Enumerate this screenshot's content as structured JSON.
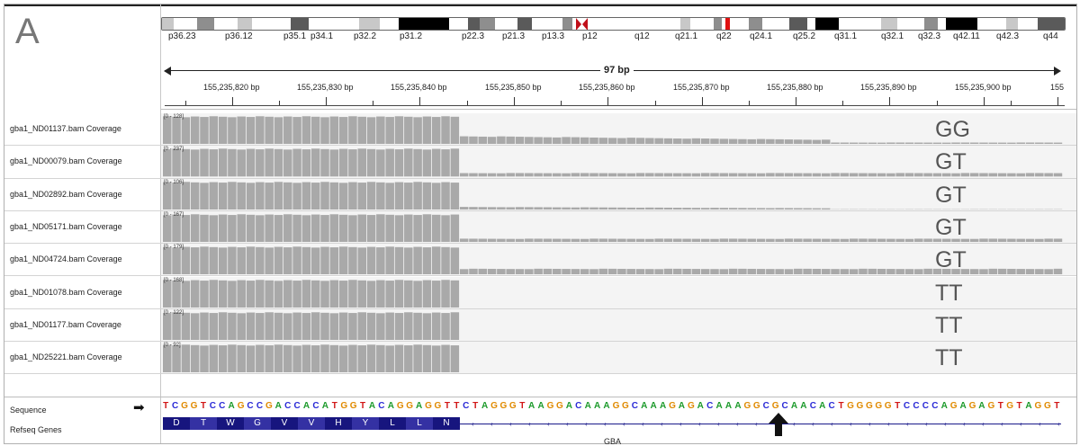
{
  "panel_label": "A",
  "ideogram": {
    "bands": [
      {
        "label": "p36.23",
        "shade": "gpos25"
      },
      {
        "label": "p36.12",
        "shade": "gpos50"
      },
      {
        "label": "p35.1",
        "shade": "gpos25"
      },
      {
        "label": "p34.1",
        "shade": "gpos75"
      },
      {
        "label": "p32.2",
        "shade": "gpos25"
      },
      {
        "label": "p31.2",
        "shade": "gpos100"
      },
      {
        "label": "p22.3",
        "shade": "gpos75"
      },
      {
        "label": "p21.3",
        "shade": "gpos50"
      },
      {
        "label": "p13.3",
        "shade": "gpos75"
      },
      {
        "label": "p12",
        "shade": "gpos50"
      },
      {
        "label": "q12",
        "shade": "gneg"
      },
      {
        "label": "q21.1",
        "shade": "gpos25"
      },
      {
        "label": "q22",
        "shade": "gpos50"
      },
      {
        "label": "q24.1",
        "shade": "gpos50"
      },
      {
        "label": "q25.2",
        "shade": "gpos75"
      },
      {
        "label": "q31.1",
        "shade": "gpos100"
      },
      {
        "label": "q32.1",
        "shade": "gpos25"
      },
      {
        "label": "q32.3",
        "shade": "gpos50"
      },
      {
        "label": "q42.11",
        "shade": "gpos100"
      },
      {
        "label": "q42.3",
        "shade": "gpos25"
      },
      {
        "label": "q44",
        "shade": "gpos75"
      }
    ],
    "current_locus_color": "#e01010",
    "centromere_color": "#c0101a"
  },
  "span_label": "97 bp",
  "ruler_labels": [
    "155,235,820 bp",
    "155,235,830 bp",
    "155,235,840 bp",
    "155,235,850 bp",
    "155,235,860 bp",
    "155,235,870 bp",
    "155,235,880 bp",
    "155,235,890 bp",
    "155,235,900 bp",
    "155"
  ],
  "tracks": [
    {
      "name": "gba1_ND01137.bam Coverage",
      "range": "[0 - 128]",
      "genotype": "GG",
      "tail_level": 0.28,
      "tail_fade": true
    },
    {
      "name": "gba1_ND00079.bam Coverage",
      "range": "[0 - 237]",
      "genotype": "GT",
      "tail_level": 0.12,
      "tail_fade": false
    },
    {
      "name": "gba1_ND02892.bam Coverage",
      "range": "[0 - 106]",
      "genotype": "GT",
      "tail_level": 0.1,
      "tail_fade": true
    },
    {
      "name": "gba1_ND05171.bam Coverage",
      "range": "[0 - 167]",
      "genotype": "GT",
      "tail_level": 0.12,
      "tail_fade": false
    },
    {
      "name": "gba1_ND04724.bam Coverage",
      "range": "[0 - 179]",
      "genotype": "GT",
      "tail_level": 0.2,
      "tail_fade": false
    },
    {
      "name": "gba1_ND01078.bam Coverage",
      "range": "[0 - 168]",
      "genotype": "TT",
      "tail_level": 0.0,
      "tail_fade": false
    },
    {
      "name": "gba1_ND01177.bam Coverage",
      "range": "[0 - 122]",
      "genotype": "TT",
      "tail_level": 0.0,
      "tail_fade": false
    },
    {
      "name": "gba1_ND25221.bam Coverage",
      "range": "[0 - 92]",
      "genotype": "TT",
      "tail_level": 0.0,
      "tail_fade": false
    }
  ],
  "sequence_track": {
    "name": "Sequence",
    "strand_arrow": "➡",
    "bases": "TCGGTCCAGCCGACCACATGGTACAGGAGGTTCTAGGGTAAGGACAAAGGCAAAGAGACAAAGGCGCAACACTGGGGGTCCCCAGAGAGTGTAGGT",
    "colors": {
      "A": "#1c9a2b",
      "C": "#2a2ad6",
      "G": "#e08a00",
      "T": "#d11616"
    }
  },
  "gene_track": {
    "name": "Refseq Genes",
    "amino_acids": [
      "D",
      "T",
      "W",
      "G",
      "V",
      "V",
      "H",
      "Y",
      "L",
      "L",
      "N"
    ],
    "gene_name": "GBA",
    "exon_color": "#17157e"
  }
}
